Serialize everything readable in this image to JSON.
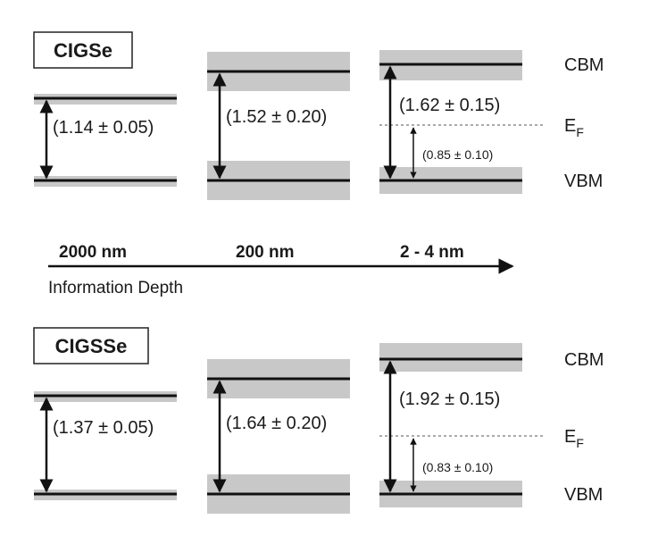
{
  "colors": {
    "band": "#c8c8c8",
    "line": "#111111",
    "fermi": "#555555"
  },
  "panels": [
    {
      "title": "CIGSe",
      "levels": {
        "cbm": "CBM",
        "ef_main": "E",
        "ef_sub": "F",
        "vbm": "VBM"
      },
      "gaps": [
        "(1.14 ± 0.05)",
        "(1.52 ± 0.20)",
        "(1.62 ± 0.15)"
      ],
      "fermi_value": "(0.85 ± 0.10)"
    },
    {
      "title": "CIGSSe",
      "levels": {
        "cbm": "CBM",
        "ef_main": "E",
        "ef_sub": "F",
        "vbm": "VBM"
      },
      "gaps": [
        "(1.37 ± 0.05)",
        "(1.64 ± 0.20)",
        "(1.92 ± 0.15)"
      ],
      "fermi_value": "(0.83 ± 0.10)"
    }
  ],
  "depth_axis": {
    "ticks": [
      "2000 nm",
      "200 nm",
      "2 - 4 nm"
    ],
    "label": "Information Depth"
  }
}
